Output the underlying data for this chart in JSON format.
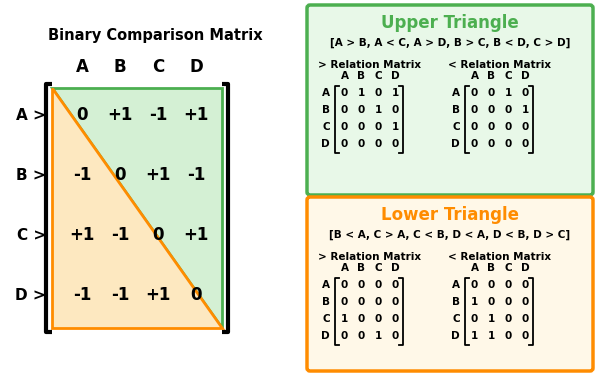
{
  "title_left": "Binary Comparison Matrix",
  "col_labels": [
    "A",
    "B",
    "C",
    "D"
  ],
  "row_labels": [
    "A >",
    "B >",
    "C >",
    "D >"
  ],
  "matrix": [
    [
      "0",
      "+1",
      "-1",
      "+1"
    ],
    [
      "-1",
      "0",
      "+1",
      "-1"
    ],
    [
      "+1",
      "-1",
      "0",
      "+1"
    ],
    [
      "-1",
      "-1",
      "+1",
      "0"
    ]
  ],
  "upper_title": "Upper Triangle",
  "lower_title": "Lower Triangle",
  "upper_box_color": "#4CAF50",
  "lower_box_color": "#FF8C00",
  "upper_relation": "[A > B, A < C, A > D, B > C, B < D, C > D]",
  "lower_relation": "[B < A, C > A, C < B, D < A, D < B, D > C]",
  "upper_gt_matrix": [
    [
      0,
      1,
      0,
      1
    ],
    [
      0,
      0,
      1,
      0
    ],
    [
      0,
      0,
      0,
      1
    ],
    [
      0,
      0,
      0,
      0
    ]
  ],
  "upper_lt_matrix": [
    [
      0,
      0,
      1,
      0
    ],
    [
      0,
      0,
      0,
      1
    ],
    [
      0,
      0,
      0,
      0
    ],
    [
      0,
      0,
      0,
      0
    ]
  ],
  "lower_gt_matrix": [
    [
      0,
      0,
      0,
      0
    ],
    [
      0,
      0,
      0,
      0
    ],
    [
      1,
      0,
      0,
      0
    ],
    [
      0,
      0,
      1,
      0
    ]
  ],
  "lower_lt_matrix": [
    [
      0,
      0,
      0,
      0
    ],
    [
      1,
      0,
      0,
      0
    ],
    [
      0,
      1,
      0,
      0
    ],
    [
      1,
      1,
      0,
      0
    ]
  ],
  "green_light": "#d4f0d4",
  "orange_light": "#fde8c0",
  "green_fill": "#e8f8e8",
  "orange_fill": "#fff8e8"
}
